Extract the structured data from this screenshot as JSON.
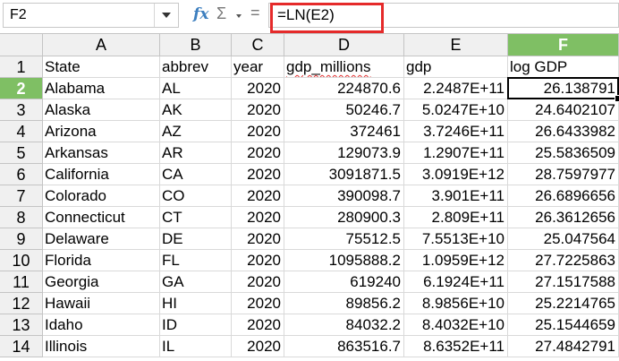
{
  "formula_bar": {
    "name_box": "F2",
    "fx_label": "fx",
    "sigma_label": "Σ",
    "equals_label": "=",
    "formula": "=LN(E2)"
  },
  "columns": [
    "A",
    "B",
    "C",
    "D",
    "E",
    "F"
  ],
  "selected_column": "F",
  "selected_row": "2",
  "rows": [
    {
      "num": "1",
      "cells": [
        "State",
        "abbrev",
        "year",
        "gdp_millions",
        "gdp",
        "log GDP"
      ]
    },
    {
      "num": "2",
      "cells": [
        "Alabama",
        "AL",
        "2020",
        "224870.6",
        "2.2487E+11",
        "26.138791"
      ]
    },
    {
      "num": "3",
      "cells": [
        "Alaska",
        "AK",
        "2020",
        "50246.7",
        "5.0247E+10",
        "24.6402107"
      ]
    },
    {
      "num": "4",
      "cells": [
        "Arizona",
        "AZ",
        "2020",
        "372461",
        "3.7246E+11",
        "26.6433982"
      ]
    },
    {
      "num": "5",
      "cells": [
        "Arkansas",
        "AR",
        "2020",
        "129073.9",
        "1.2907E+11",
        "25.5836509"
      ]
    },
    {
      "num": "6",
      "cells": [
        "California",
        "CA",
        "2020",
        "3091871.5",
        "3.0919E+12",
        "28.7597977"
      ]
    },
    {
      "num": "7",
      "cells": [
        "Colorado",
        "CO",
        "2020",
        "390098.7",
        "3.901E+11",
        "26.6896656"
      ]
    },
    {
      "num": "8",
      "cells": [
        "Connecticut",
        "CT",
        "2020",
        "280900.3",
        "2.809E+11",
        "26.3612656"
      ]
    },
    {
      "num": "9",
      "cells": [
        "Delaware",
        "DE",
        "2020",
        "75512.5",
        "7.5513E+10",
        "25.047564"
      ]
    },
    {
      "num": "10",
      "cells": [
        "Florida",
        "FL",
        "2020",
        "1095888.2",
        "1.0959E+12",
        "27.7225863"
      ]
    },
    {
      "num": "11",
      "cells": [
        "Georgia",
        "GA",
        "2020",
        "619240",
        "6.1924E+11",
        "27.1517588"
      ]
    },
    {
      "num": "12",
      "cells": [
        "Hawaii",
        "HI",
        "2020",
        "89856.2",
        "8.9856E+10",
        "25.2214765"
      ]
    },
    {
      "num": "13",
      "cells": [
        "Idaho",
        "ID",
        "2020",
        "84032.2",
        "8.4032E+10",
        "25.1544659"
      ]
    },
    {
      "num": "14",
      "cells": [
        "Illinois",
        "IL",
        "2020",
        "863516.7",
        "8.6352E+11",
        "27.4842791"
      ]
    }
  ],
  "colors": {
    "selection_header": "#7fbf64",
    "formula_highlight": "#e52a2a",
    "fx_color": "#3d7fbf"
  }
}
